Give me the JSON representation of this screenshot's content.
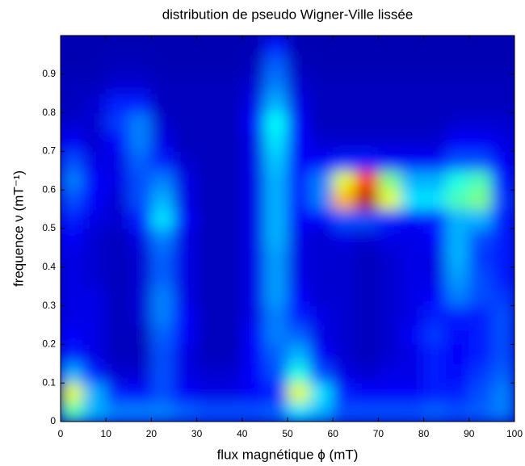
{
  "chart_data": {
    "type": "heatmap",
    "title": "distribution de pseudo Wigner-Ville lissée",
    "xlabel": "flux magnétique ϕ (mT)",
    "ylabel": "frequence ν (mT⁻¹)",
    "colormap": "jet",
    "xlim": [
      0,
      100
    ],
    "ylim": [
      0,
      1
    ],
    "xticks": [
      0,
      10,
      20,
      30,
      40,
      50,
      60,
      70,
      80,
      90,
      100
    ],
    "yticks": [
      0,
      0.1,
      0.2,
      0.3,
      0.4,
      0.5,
      0.6,
      0.7,
      0.8,
      0.9
    ],
    "xbins": [
      0,
      5,
      10,
      15,
      20,
      25,
      30,
      35,
      40,
      45,
      50,
      55,
      60,
      65,
      70,
      75,
      80,
      85,
      90,
      95,
      100
    ],
    "ybins": [
      0,
      0.05,
      0.1,
      0.15,
      0.2,
      0.25,
      0.3,
      0.35,
      0.4,
      0.45,
      0.5,
      0.55,
      0.6,
      0.65,
      0.7,
      0.75,
      0.8,
      0.85,
      0.9,
      0.95,
      1
    ],
    "z": [
      [
        0.45,
        0.3,
        0.25,
        0.25,
        0.25,
        0.22,
        0.2,
        0.2,
        0.2,
        0.22,
        0.35,
        0.3,
        0.2,
        0.2,
        0.2,
        0.2,
        0.22,
        0.2,
        0.22,
        0.25
      ],
      [
        0.6,
        0.3,
        0.15,
        0.12,
        0.2,
        0.12,
        0.1,
        0.1,
        0.12,
        0.15,
        0.6,
        0.35,
        0.15,
        0.12,
        0.12,
        0.12,
        0.15,
        0.15,
        0.2,
        0.25
      ],
      [
        0.3,
        0.15,
        0.08,
        0.08,
        0.2,
        0.1,
        0.08,
        0.08,
        0.12,
        0.2,
        0.4,
        0.2,
        0.1,
        0.08,
        0.1,
        0.1,
        0.15,
        0.12,
        0.18,
        0.22
      ],
      [
        0.15,
        0.1,
        0.06,
        0.06,
        0.2,
        0.1,
        0.06,
        0.06,
        0.12,
        0.22,
        0.3,
        0.12,
        0.08,
        0.06,
        0.08,
        0.1,
        0.15,
        0.12,
        0.15,
        0.2
      ],
      [
        0.12,
        0.1,
        0.06,
        0.06,
        0.22,
        0.12,
        0.06,
        0.06,
        0.12,
        0.25,
        0.22,
        0.1,
        0.08,
        0.06,
        0.08,
        0.12,
        0.18,
        0.12,
        0.15,
        0.2
      ],
      [
        0.1,
        0.1,
        0.06,
        0.08,
        0.25,
        0.12,
        0.06,
        0.06,
        0.1,
        0.25,
        0.15,
        0.1,
        0.08,
        0.06,
        0.08,
        0.1,
        0.15,
        0.15,
        0.15,
        0.2
      ],
      [
        0.1,
        0.1,
        0.06,
        0.08,
        0.25,
        0.1,
        0.06,
        0.06,
        0.1,
        0.28,
        0.12,
        0.08,
        0.08,
        0.06,
        0.08,
        0.1,
        0.12,
        0.25,
        0.2,
        0.18
      ],
      [
        0.1,
        0.08,
        0.06,
        0.08,
        0.22,
        0.1,
        0.06,
        0.06,
        0.1,
        0.28,
        0.1,
        0.08,
        0.08,
        0.06,
        0.08,
        0.1,
        0.1,
        0.28,
        0.2,
        0.15
      ],
      [
        0.1,
        0.08,
        0.06,
        0.08,
        0.22,
        0.1,
        0.06,
        0.06,
        0.1,
        0.28,
        0.1,
        0.08,
        0.08,
        0.06,
        0.08,
        0.1,
        0.1,
        0.3,
        0.18,
        0.15
      ],
      [
        0.12,
        0.08,
        0.06,
        0.1,
        0.25,
        0.1,
        0.06,
        0.06,
        0.1,
        0.3,
        0.1,
        0.08,
        0.1,
        0.08,
        0.1,
        0.1,
        0.12,
        0.3,
        0.2,
        0.15
      ],
      [
        0.15,
        0.1,
        0.08,
        0.15,
        0.35,
        0.12,
        0.06,
        0.06,
        0.1,
        0.3,
        0.12,
        0.12,
        0.2,
        0.2,
        0.15,
        0.12,
        0.15,
        0.3,
        0.3,
        0.15
      ],
      [
        0.2,
        0.12,
        0.08,
        0.2,
        0.3,
        0.1,
        0.06,
        0.06,
        0.1,
        0.3,
        0.15,
        0.25,
        0.7,
        0.95,
        0.6,
        0.35,
        0.35,
        0.45,
        0.5,
        0.18
      ],
      [
        0.25,
        0.12,
        0.1,
        0.2,
        0.25,
        0.1,
        0.06,
        0.06,
        0.1,
        0.3,
        0.15,
        0.25,
        0.6,
        0.85,
        0.5,
        0.3,
        0.3,
        0.4,
        0.45,
        0.15
      ],
      [
        0.2,
        0.1,
        0.1,
        0.22,
        0.15,
        0.08,
        0.06,
        0.06,
        0.1,
        0.32,
        0.12,
        0.12,
        0.15,
        0.15,
        0.12,
        0.12,
        0.12,
        0.2,
        0.2,
        0.12
      ],
      [
        0.12,
        0.08,
        0.12,
        0.25,
        0.1,
        0.06,
        0.06,
        0.06,
        0.1,
        0.35,
        0.12,
        0.08,
        0.08,
        0.08,
        0.08,
        0.08,
        0.08,
        0.12,
        0.12,
        0.1
      ],
      [
        0.08,
        0.08,
        0.18,
        0.25,
        0.08,
        0.06,
        0.06,
        0.06,
        0.12,
        0.38,
        0.12,
        0.06,
        0.06,
        0.06,
        0.06,
        0.06,
        0.06,
        0.08,
        0.08,
        0.08
      ],
      [
        0.06,
        0.08,
        0.15,
        0.15,
        0.06,
        0.06,
        0.06,
        0.06,
        0.1,
        0.3,
        0.1,
        0.06,
        0.06,
        0.06,
        0.06,
        0.06,
        0.06,
        0.06,
        0.06,
        0.06
      ],
      [
        0.06,
        0.06,
        0.08,
        0.08,
        0.06,
        0.06,
        0.06,
        0.06,
        0.08,
        0.25,
        0.08,
        0.06,
        0.06,
        0.06,
        0.06,
        0.06,
        0.06,
        0.06,
        0.06,
        0.06
      ],
      [
        0.05,
        0.05,
        0.06,
        0.06,
        0.05,
        0.05,
        0.05,
        0.05,
        0.06,
        0.22,
        0.06,
        0.05,
        0.05,
        0.05,
        0.05,
        0.05,
        0.05,
        0.05,
        0.05,
        0.05
      ],
      [
        0.05,
        0.05,
        0.05,
        0.05,
        0.05,
        0.05,
        0.05,
        0.05,
        0.05,
        0.15,
        0.05,
        0.05,
        0.05,
        0.05,
        0.05,
        0.05,
        0.05,
        0.05,
        0.05,
        0.05
      ]
    ]
  }
}
